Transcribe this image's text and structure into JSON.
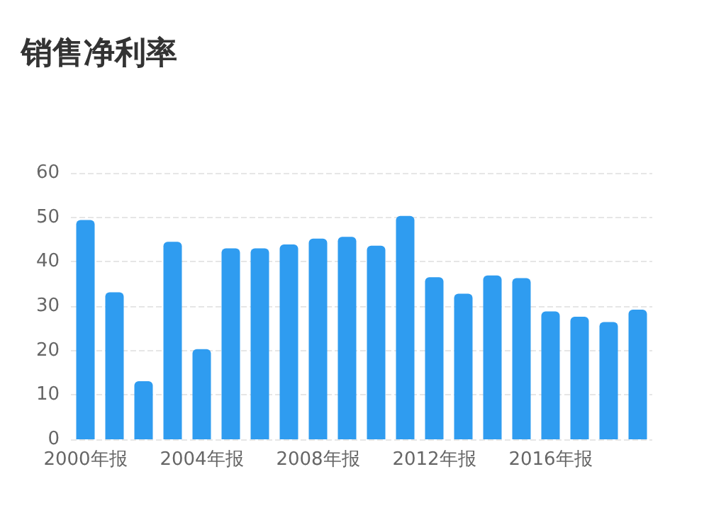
{
  "chart_data": {
    "type": "bar",
    "title": "销售净利率",
    "categories": [
      "2000年报",
      null,
      null,
      null,
      "2004年报",
      null,
      null,
      null,
      "2008年报",
      null,
      null,
      null,
      "2012年报",
      null,
      null,
      null,
      "2016年报",
      null,
      null,
      null
    ],
    "values": [
      49.4,
      33.1,
      13.1,
      44.5,
      20.3,
      43,
      43,
      43.9,
      45.2,
      45.6,
      43.6,
      50.3,
      36.5,
      32.8,
      36.9,
      36.3,
      28.8,
      27.6,
      26.4,
      29.2
    ],
    "color": "#2f9cf0",
    "ylim": [
      0,
      60
    ],
    "yticks": [
      0,
      10,
      20,
      30,
      40,
      50,
      60
    ],
    "grid": "y"
  }
}
